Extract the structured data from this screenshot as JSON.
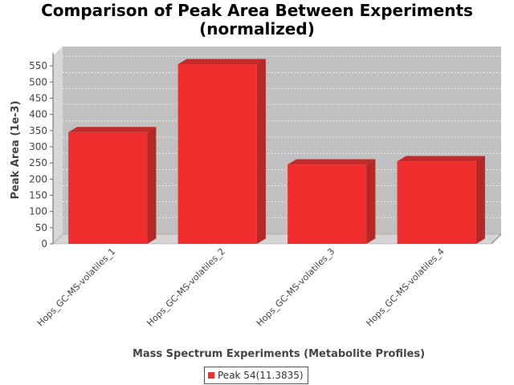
{
  "chart_data": {
    "type": "bar",
    "title": [
      "Comparison of Peak Area Between Experiments",
      "(normalized)"
    ],
    "xlabel": "Mass Spectrum Experiments (Metabolite Profiles)",
    "ylabel": "Peak Area (1e-3)",
    "categories": [
      "Hops_GC-MS-volatiles_1",
      "Hops_GC-MS-volatiles_2",
      "Hops_GC-MS-volatiles_3",
      "Hops_GC-MS-volatiles_4"
    ],
    "series": [
      {
        "name": "Peak 54(11.3835)",
        "values": [
          345,
          555,
          245,
          255
        ],
        "color": "#f02e2e"
      }
    ],
    "yticks": [
      0,
      50,
      100,
      150,
      200,
      250,
      300,
      350,
      400,
      450,
      500,
      550
    ],
    "ylim": [
      0,
      580
    ],
    "grid": true,
    "legend_position": "bottom",
    "plot_background": "#c0c0c0"
  }
}
